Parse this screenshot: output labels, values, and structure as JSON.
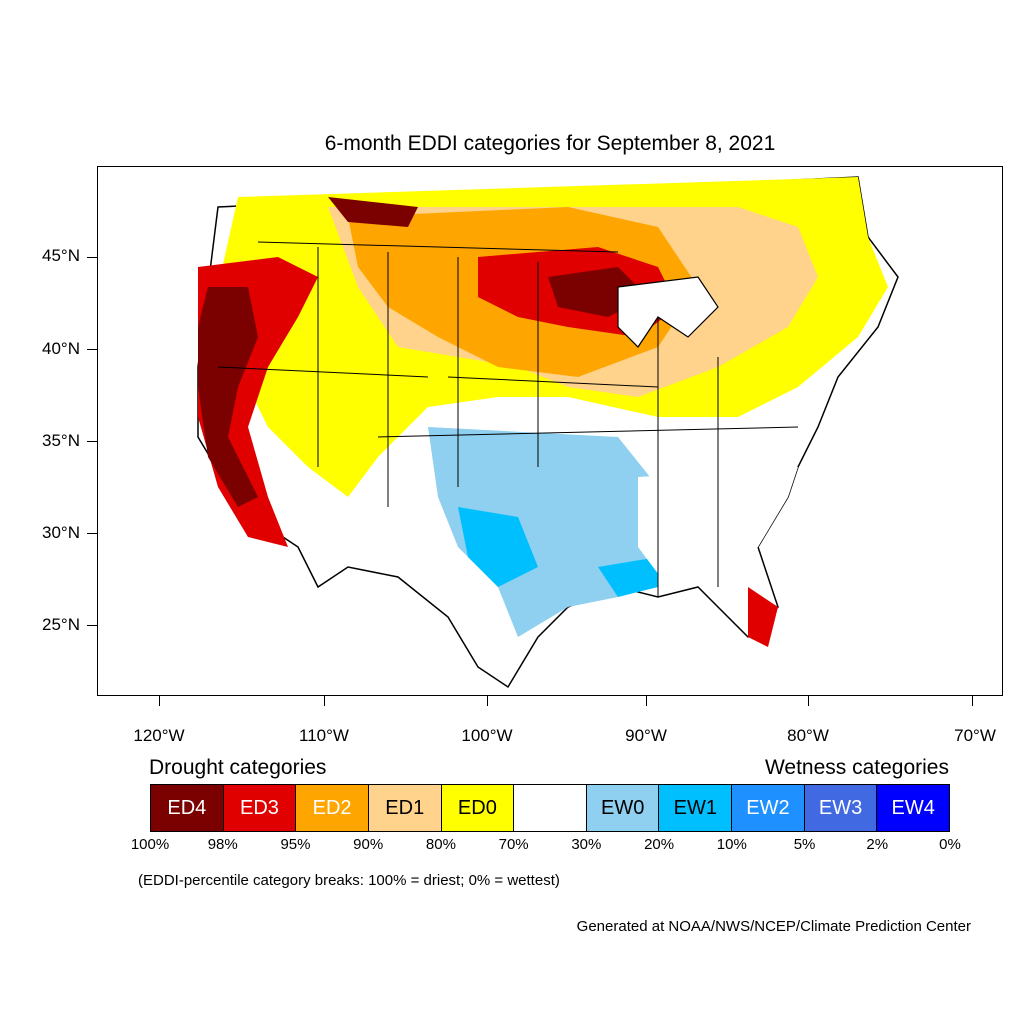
{
  "title": "6-month EDDI categories for September 8, 2021",
  "latitude_labels": [
    "45°N",
    "40°N",
    "35°N",
    "30°N",
    "25°N"
  ],
  "longitude_labels": [
    "120°W",
    "110°W",
    "100°W",
    "90°W",
    "80°W",
    "70°W"
  ],
  "legend": {
    "drought_heading": "Drought categories",
    "wetness_heading": "Wetness categories",
    "categories": [
      {
        "label": "ED4",
        "color": "#7b0000",
        "text_color": "#ffffff"
      },
      {
        "label": "ED3",
        "color": "#e00000",
        "text_color": "#ffffff"
      },
      {
        "label": "ED2",
        "color": "#ffa500",
        "text_color": "#ffffff"
      },
      {
        "label": "ED1",
        "color": "#ffd38c",
        "text_color": "#000000"
      },
      {
        "label": "ED0",
        "color": "#ffff00",
        "text_color": "#000000"
      },
      {
        "label": "",
        "color": "#ffffff",
        "text_color": "#000000"
      },
      {
        "label": "EW0",
        "color": "#8fcfef",
        "text_color": "#000000"
      },
      {
        "label": "EW1",
        "color": "#00bfff",
        "text_color": "#000000"
      },
      {
        "label": "EW2",
        "color": "#1e90ff",
        "text_color": "#ffffff"
      },
      {
        "label": "EW3",
        "color": "#4169e1",
        "text_color": "#ffffff"
      },
      {
        "label": "EW4",
        "color": "#0000ff",
        "text_color": "#ffffff"
      }
    ],
    "breaks": [
      "100%",
      "98%",
      "95%",
      "90%",
      "80%",
      "70%",
      "30%",
      "20%",
      "10%",
      "5%",
      "2%",
      "0%"
    ]
  },
  "note": "(EDDI-percentile category breaks: 100% = driest; 0% = wettest)",
  "credit": "Generated at NOAA/NWS/NCEP/Climate Prediction Center"
}
